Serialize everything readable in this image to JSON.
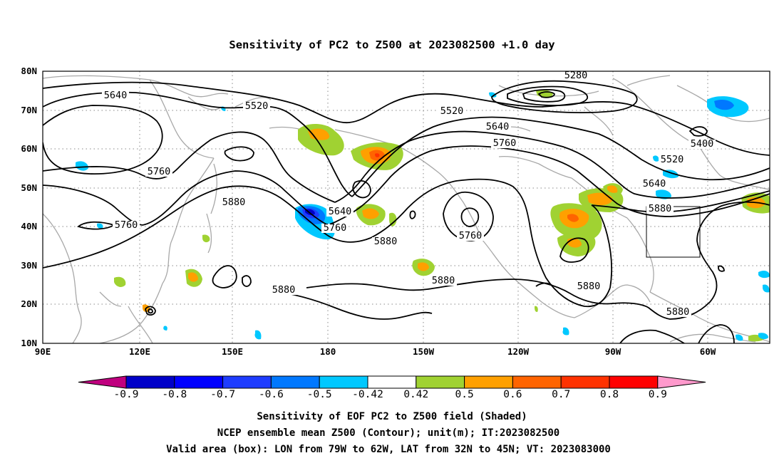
{
  "title": "Sensitivity of PC2 to Z500 at 2023082500 +1.0 day",
  "lat_labels": [
    "80N",
    "70N",
    "60N",
    "50N",
    "40N",
    "30N",
    "20N",
    "10N"
  ],
  "lon_labels": [
    "90E",
    "120E",
    "150E",
    "180",
    "150W",
    "120W",
    "90W",
    "60W"
  ],
  "contour_labels": [
    "5280",
    "5400",
    "5520",
    "5520",
    "5520",
    "5640",
    "5640",
    "5640",
    "5640",
    "5760",
    "5760",
    "5760",
    "5760",
    "5760",
    "5880",
    "5880",
    "5880",
    "5880",
    "5880",
    "5880",
    "5880"
  ],
  "colorbar": {
    "labels": [
      "-0.9",
      "-0.8",
      "-0.7",
      "-0.6",
      "-0.5",
      "-0.42",
      "0.42",
      "0.5",
      "0.6",
      "0.7",
      "0.8",
      "0.9"
    ],
    "colors": [
      "#c0007f",
      "#0000c8",
      "#0000ff",
      "#1e3cff",
      "#0078ff",
      "#00c8ff",
      "#ffffff",
      "#a0d232",
      "#ffa000",
      "#ff6400",
      "#ff3200",
      "#ff0000",
      "#ff99cc"
    ]
  },
  "caption": {
    "line1": "Sensitivity of EOF PC2 to Z500 field (Shaded)",
    "line2": "NCEP ensemble mean Z500 (Contour); unit(m); IT:2023082500",
    "line3": "Valid area (box): LON from 79W to 62W, LAT from 32N to 45N; VT: 2023083000"
  },
  "colors": {
    "coast": "#a8a8a8",
    "contour": "#000000",
    "grid": "#888888"
  }
}
